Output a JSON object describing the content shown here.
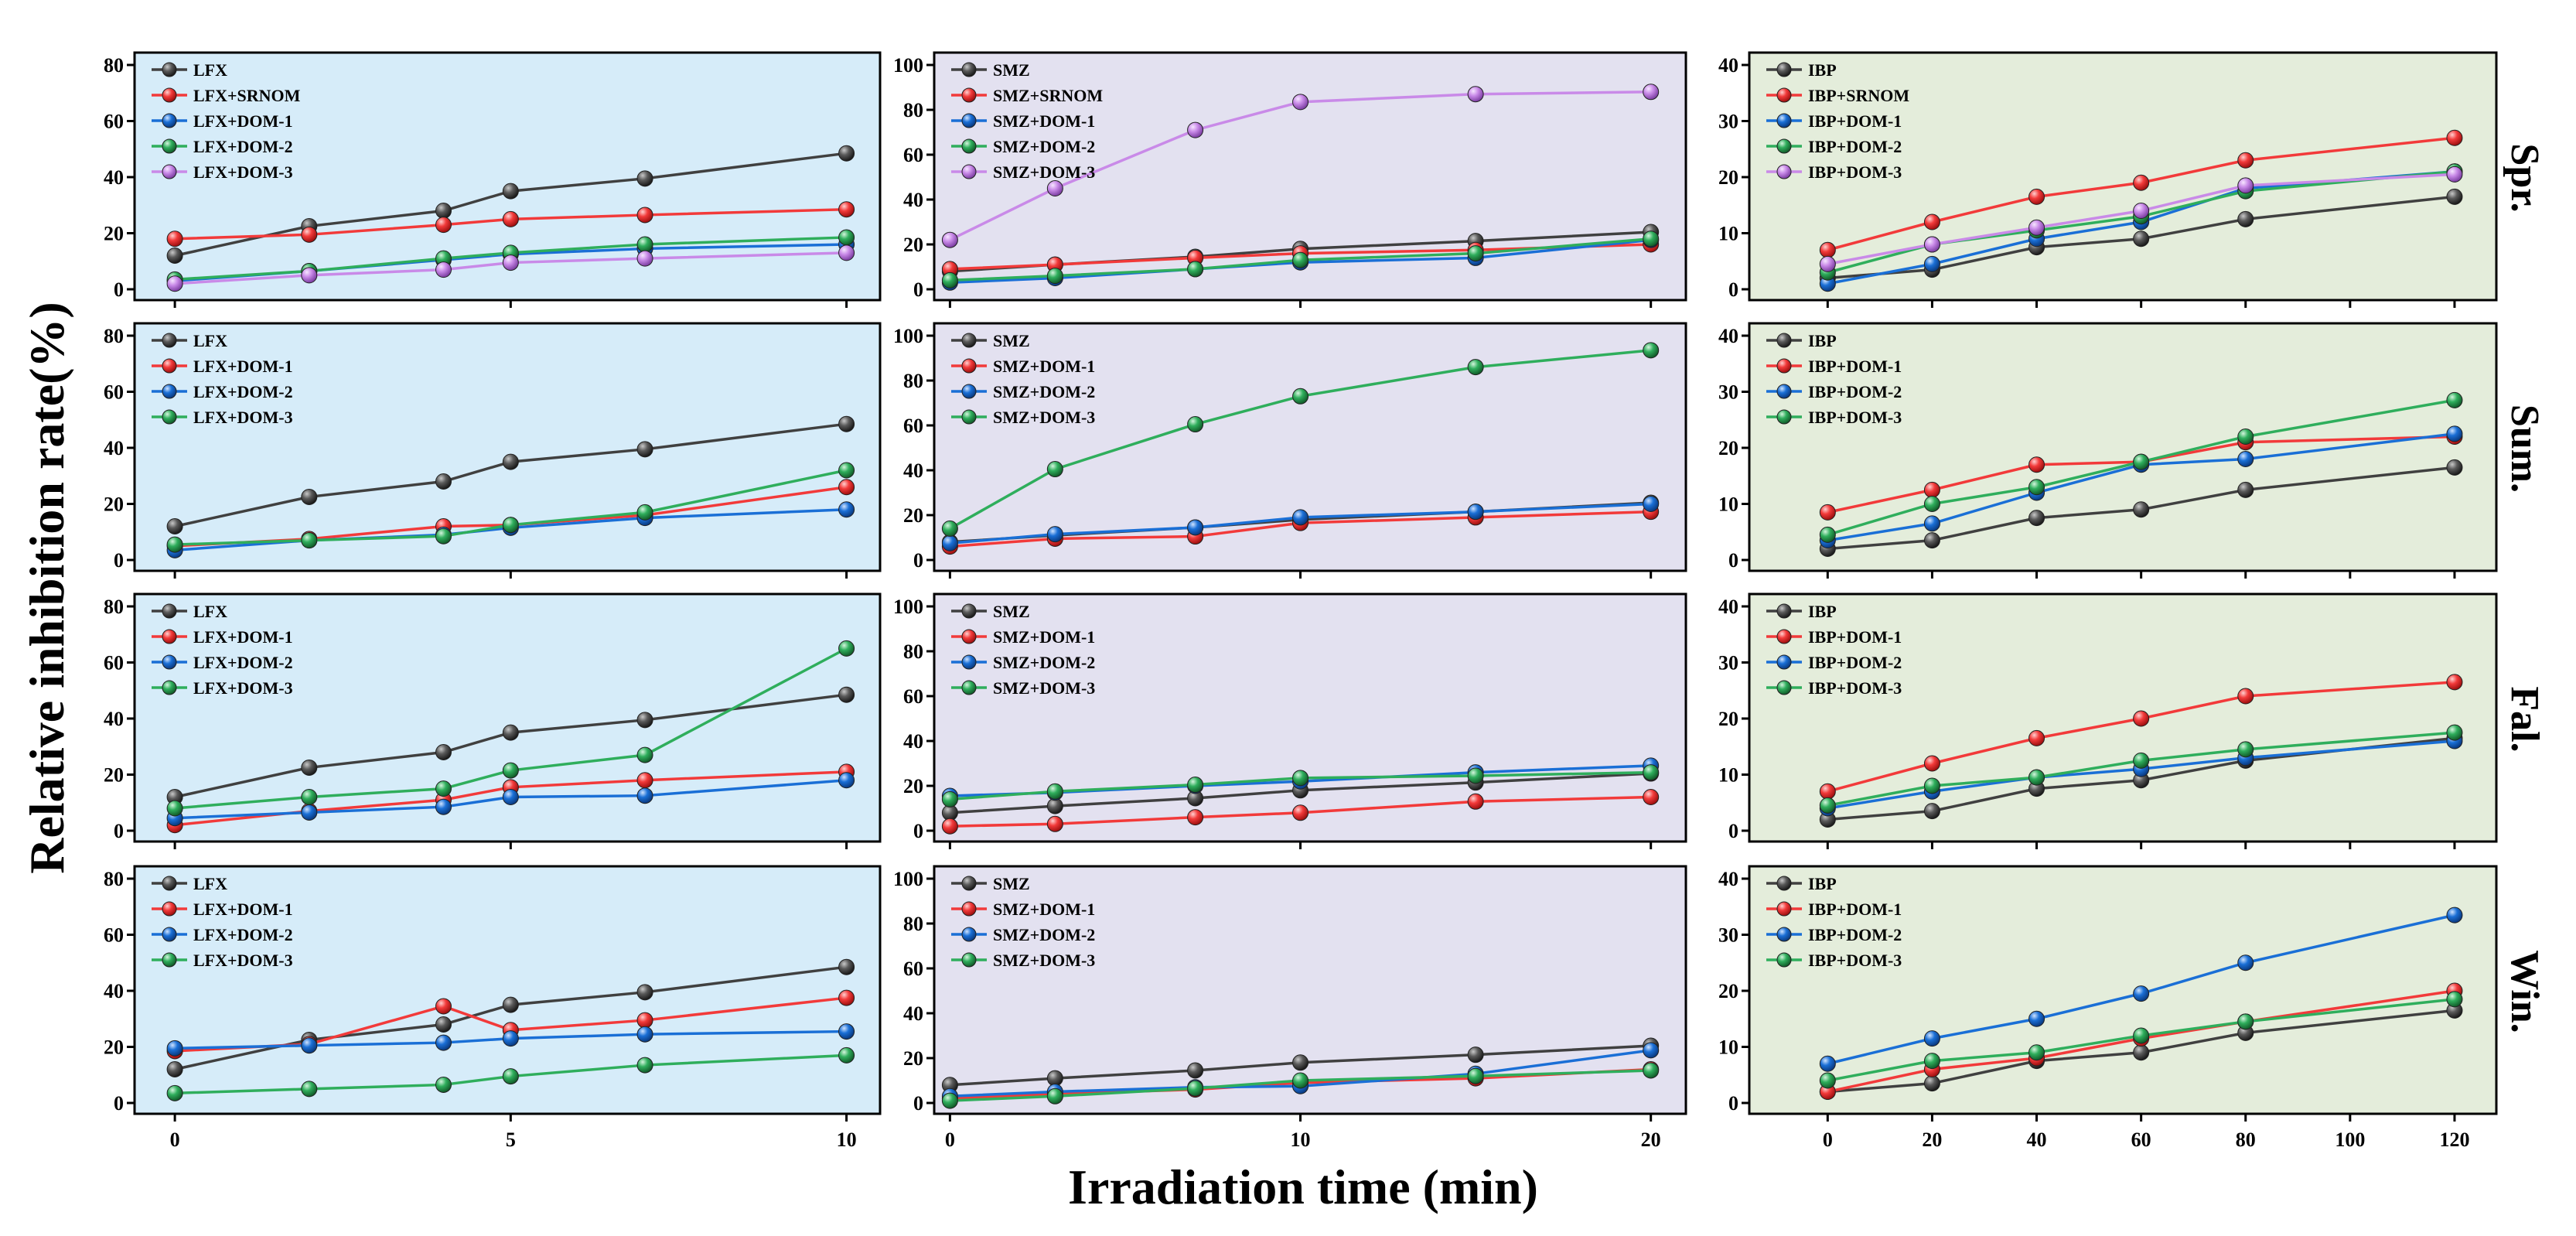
{
  "figure": {
    "ylabel": "Relative inhibition rate(%)",
    "xlabel": "Irradiation time (min)",
    "seasons": [
      "Spr.",
      "Sum.",
      "Fal.",
      "Win."
    ]
  },
  "colors": {
    "black": "#404040",
    "red": "#f23a3a",
    "blue": "#1a6fd6",
    "green": "#2fae5c",
    "purple": "#c98ae8",
    "bg_lfx": "#d6ecf9",
    "bg_smz": "#e3e1f0",
    "bg_ibp": "#e4eddb"
  },
  "chart_data": [
    {
      "type": "line",
      "title": "LFX Spr.",
      "x": [
        0,
        2,
        4,
        5,
        7,
        10
      ],
      "ylim": [
        0,
        80
      ],
      "yticks": [
        0,
        20,
        40,
        60,
        80
      ],
      "xticks": [],
      "series": [
        {
          "name": "LFX",
          "color": "black",
          "values": [
            12,
            22.5,
            28,
            35,
            39.5,
            48.5
          ]
        },
        {
          "name": "LFX+SRNOM",
          "color": "red",
          "values": [
            18,
            19.5,
            23,
            25,
            26.5,
            28.5
          ]
        },
        {
          "name": "LFX+DOM-1",
          "color": "blue",
          "values": [
            3,
            6.5,
            10.5,
            12.5,
            14.5,
            16
          ]
        },
        {
          "name": "LFX+DOM-2",
          "color": "green",
          "values": [
            3.5,
            6.5,
            11,
            13,
            16,
            18.5
          ]
        },
        {
          "name": "LFX+DOM-3",
          "color": "purple",
          "values": [
            2,
            5,
            7,
            9.5,
            11,
            13
          ]
        }
      ]
    },
    {
      "type": "line",
      "title": "SMZ Spr.",
      "x": [
        0,
        3,
        7,
        10,
        15,
        20
      ],
      "ylim": [
        0,
        100
      ],
      "yticks": [
        0,
        20,
        40,
        60,
        80,
        100
      ],
      "xticks": [],
      "series": [
        {
          "name": "SMZ",
          "color": "black",
          "values": [
            8,
            11,
            14.5,
            18,
            21.5,
            25.5
          ]
        },
        {
          "name": "SMZ+SRNOM",
          "color": "red",
          "values": [
            9,
            11,
            14,
            16,
            17.5,
            20
          ]
        },
        {
          "name": "SMZ+DOM-1",
          "color": "blue",
          "values": [
            3,
            5,
            9,
            12,
            14,
            22
          ]
        },
        {
          "name": "SMZ+DOM-2",
          "color": "green",
          "values": [
            4,
            6,
            9,
            13,
            16,
            22.5
          ]
        },
        {
          "name": "SMZ+DOM-3",
          "color": "purple",
          "values": [
            22,
            45,
            71,
            83.5,
            87,
            88
          ]
        }
      ]
    },
    {
      "type": "line",
      "title": "IBP Spr.",
      "x": [
        0,
        20,
        40,
        60,
        80,
        120
      ],
      "ylim": [
        0,
        40
      ],
      "yticks": [
        0,
        10,
        20,
        30,
        40
      ],
      "xticks": [],
      "series": [
        {
          "name": "IBP",
          "color": "black",
          "values": [
            2,
            3.5,
            7.5,
            9,
            12.5,
            16.5
          ]
        },
        {
          "name": "IBP+SRNOM",
          "color": "red",
          "values": [
            7,
            12,
            16.5,
            19,
            23,
            27
          ]
        },
        {
          "name": "IBP+DOM-1",
          "color": "blue",
          "values": [
            1,
            4.5,
            9,
            12,
            18,
            21
          ]
        },
        {
          "name": "IBP+DOM-2",
          "color": "green",
          "values": [
            3,
            8,
            10.5,
            13,
            17.5,
            21
          ]
        },
        {
          "name": "IBP+DOM-3",
          "color": "purple",
          "values": [
            4.5,
            8,
            11,
            14,
            18.5,
            20.5
          ]
        }
      ]
    },
    {
      "type": "line",
      "title": "LFX Sum.",
      "x": [
        0,
        2,
        4,
        5,
        7,
        10
      ],
      "ylim": [
        0,
        80
      ],
      "yticks": [
        0,
        20,
        40,
        60,
        80
      ],
      "xticks": [],
      "series": [
        {
          "name": "LFX",
          "color": "black",
          "values": [
            12,
            22.5,
            28,
            35,
            39.5,
            48.5
          ]
        },
        {
          "name": "LFX+DOM-1",
          "color": "red",
          "values": [
            5,
            7.5,
            12,
            12.5,
            16,
            26
          ]
        },
        {
          "name": "LFX+DOM-2",
          "color": "blue",
          "values": [
            3.5,
            7,
            9,
            11.5,
            15,
            18
          ]
        },
        {
          "name": "LFX+DOM-3",
          "color": "green",
          "values": [
            5.5,
            7,
            8.5,
            12.5,
            17,
            32
          ]
        }
      ]
    },
    {
      "type": "line",
      "title": "SMZ Sum.",
      "x": [
        0,
        3,
        7,
        10,
        15,
        20
      ],
      "ylim": [
        0,
        100
      ],
      "yticks": [
        0,
        20,
        40,
        60,
        80,
        100
      ],
      "xticks": [],
      "series": [
        {
          "name": "SMZ",
          "color": "black",
          "values": [
            8,
            11,
            14.5,
            18,
            21.5,
            25.5
          ]
        },
        {
          "name": "SMZ+DOM-1",
          "color": "red",
          "values": [
            6,
            9.5,
            10.5,
            16.5,
            19,
            21.5
          ]
        },
        {
          "name": "SMZ+DOM-2",
          "color": "blue",
          "values": [
            7.5,
            11.5,
            14.5,
            19,
            21.5,
            25
          ]
        },
        {
          "name": "SMZ+DOM-3",
          "color": "green",
          "values": [
            14,
            40.5,
            60.5,
            73,
            86,
            93.5
          ]
        }
      ]
    },
    {
      "type": "line",
      "title": "IBP Sum.",
      "x": [
        0,
        20,
        40,
        60,
        80,
        120
      ],
      "ylim": [
        0,
        40
      ],
      "yticks": [
        0,
        10,
        20,
        30,
        40
      ],
      "xticks": [],
      "series": [
        {
          "name": "IBP",
          "color": "black",
          "values": [
            2,
            3.5,
            7.5,
            9,
            12.5,
            16.5
          ]
        },
        {
          "name": "IBP+DOM-1",
          "color": "red",
          "values": [
            8.5,
            12.5,
            17,
            17.5,
            21,
            22
          ]
        },
        {
          "name": "IBP+DOM-2",
          "color": "blue",
          "values": [
            3.5,
            6.5,
            12,
            17,
            18,
            22.5
          ]
        },
        {
          "name": "IBP+DOM-3",
          "color": "green",
          "values": [
            4.5,
            10,
            13,
            17.5,
            22,
            28.5
          ]
        }
      ]
    },
    {
      "type": "line",
      "title": "LFX Fal.",
      "x": [
        0,
        2,
        4,
        5,
        7,
        10
      ],
      "ylim": [
        0,
        80
      ],
      "yticks": [
        0,
        20,
        40,
        60,
        80
      ],
      "xticks": [],
      "series": [
        {
          "name": "LFX",
          "color": "black",
          "values": [
            12,
            22.5,
            28,
            35,
            39.5,
            48.5
          ]
        },
        {
          "name": "LFX+DOM-1",
          "color": "red",
          "values": [
            2,
            7,
            11,
            15.5,
            18,
            21
          ]
        },
        {
          "name": "LFX+DOM-2",
          "color": "blue",
          "values": [
            4.5,
            6.5,
            8.5,
            12,
            12.5,
            18
          ]
        },
        {
          "name": "LFX+DOM-3",
          "color": "green",
          "values": [
            8,
            12,
            15,
            21.5,
            27,
            65
          ]
        }
      ]
    },
    {
      "type": "line",
      "title": "SMZ Fal.",
      "x": [
        0,
        3,
        7,
        10,
        15,
        20
      ],
      "ylim": [
        0,
        100
      ],
      "yticks": [
        0,
        20,
        40,
        60,
        80,
        100
      ],
      "xticks": [],
      "series": [
        {
          "name": "SMZ",
          "color": "black",
          "values": [
            8,
            11,
            14.5,
            18,
            21.5,
            25.5
          ]
        },
        {
          "name": "SMZ+DOM-1",
          "color": "red",
          "values": [
            2,
            3,
            6,
            8,
            13,
            15
          ]
        },
        {
          "name": "SMZ+DOM-2",
          "color": "blue",
          "values": [
            15.5,
            17,
            20,
            22,
            26,
            29
          ]
        },
        {
          "name": "SMZ+DOM-3",
          "color": "green",
          "values": [
            14,
            17.5,
            20.5,
            23.5,
            24.5,
            26
          ]
        }
      ]
    },
    {
      "type": "line",
      "title": "IBP Fal.",
      "x": [
        0,
        20,
        40,
        60,
        80,
        120
      ],
      "ylim": [
        0,
        40
      ],
      "yticks": [
        0,
        10,
        20,
        30,
        40
      ],
      "xticks": [],
      "series": [
        {
          "name": "IBP",
          "color": "black",
          "values": [
            2,
            3.5,
            7.5,
            9,
            12.5,
            16.5
          ]
        },
        {
          "name": "IBP+DOM-1",
          "color": "red",
          "values": [
            7,
            12,
            16.5,
            20,
            24,
            26.5
          ]
        },
        {
          "name": "IBP+DOM-2",
          "color": "blue",
          "values": [
            4,
            7,
            9.5,
            11,
            13,
            16
          ]
        },
        {
          "name": "IBP+DOM-3",
          "color": "green",
          "values": [
            4.5,
            8,
            9.5,
            12.5,
            14.5,
            17.5
          ]
        }
      ]
    },
    {
      "type": "line",
      "title": "LFX Win.",
      "x": [
        0,
        2,
        4,
        5,
        7,
        10
      ],
      "ylim": [
        0,
        80
      ],
      "yticks": [
        0,
        20,
        40,
        60,
        80
      ],
      "xticks": [
        0,
        5,
        10
      ],
      "series": [
        {
          "name": "LFX",
          "color": "black",
          "values": [
            12,
            22.5,
            28,
            35,
            39.5,
            48.5
          ]
        },
        {
          "name": "LFX+DOM-1",
          "color": "red",
          "values": [
            18.5,
            21,
            34.5,
            26,
            29.5,
            37.5
          ]
        },
        {
          "name": "LFX+DOM-2",
          "color": "blue",
          "values": [
            19.5,
            20.5,
            21.5,
            23,
            24.5,
            25.5
          ]
        },
        {
          "name": "LFX+DOM-3",
          "color": "green",
          "values": [
            3.5,
            5,
            6.5,
            9.5,
            13.5,
            17
          ]
        }
      ]
    },
    {
      "type": "line",
      "title": "SMZ Win.",
      "x": [
        0,
        3,
        7,
        10,
        15,
        20
      ],
      "ylim": [
        0,
        100
      ],
      "yticks": [
        0,
        20,
        40,
        60,
        80,
        100
      ],
      "xticks": [
        0,
        10,
        20
      ],
      "series": [
        {
          "name": "SMZ",
          "color": "black",
          "values": [
            8,
            11,
            14.5,
            18,
            21.5,
            25.5
          ]
        },
        {
          "name": "SMZ+DOM-1",
          "color": "red",
          "values": [
            2,
            4,
            6,
            9,
            11,
            15
          ]
        },
        {
          "name": "SMZ+DOM-2",
          "color": "blue",
          "values": [
            3,
            5,
            7,
            7.5,
            13,
            23.5
          ]
        },
        {
          "name": "SMZ+DOM-3",
          "color": "green",
          "values": [
            1,
            3,
            6.5,
            10,
            12,
            14.5
          ]
        }
      ]
    },
    {
      "type": "line",
      "title": "IBP Win.",
      "x": [
        0,
        20,
        40,
        60,
        80,
        120
      ],
      "ylim": [
        0,
        40
      ],
      "yticks": [
        0,
        10,
        20,
        30,
        40
      ],
      "xticks": [
        0,
        20,
        40,
        60,
        80,
        100,
        120
      ],
      "series": [
        {
          "name": "IBP",
          "color": "black",
          "values": [
            2,
            3.5,
            7.5,
            9,
            12.5,
            16.5
          ]
        },
        {
          "name": "IBP+DOM-1",
          "color": "red",
          "values": [
            2,
            6,
            8,
            11.5,
            14.5,
            20
          ]
        },
        {
          "name": "IBP+DOM-2",
          "color": "blue",
          "values": [
            7,
            11.5,
            15,
            19.5,
            25,
            33.5
          ]
        },
        {
          "name": "IBP+DOM-3",
          "color": "green",
          "values": [
            4,
            7.5,
            9,
            12,
            14.5,
            18.5
          ]
        }
      ]
    }
  ]
}
